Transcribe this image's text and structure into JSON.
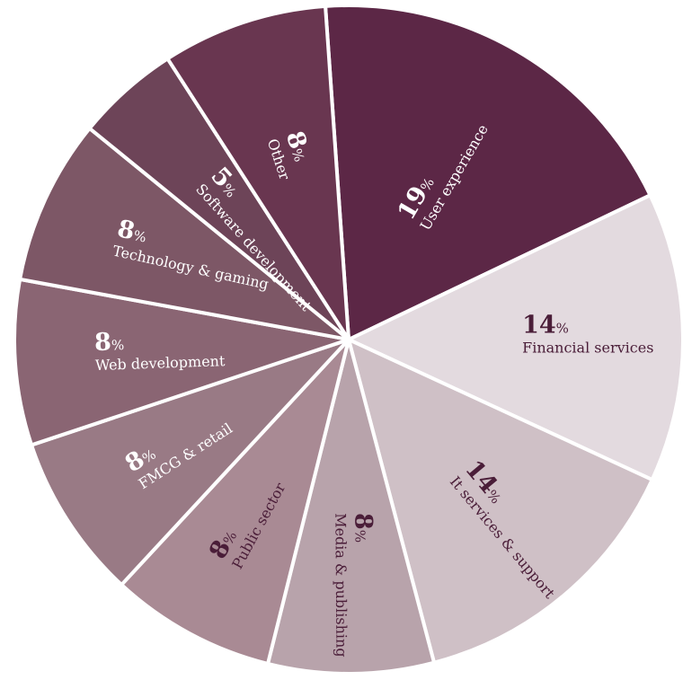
{
  "chart_data": {
    "type": "pie",
    "start_angle_deg": -4,
    "direction": "clockwise",
    "slices": [
      {
        "label": "User experience",
        "value": 19,
        "display": "19",
        "unit": "%",
        "color": "#5c2746",
        "text_color": "#ffffff"
      },
      {
        "label": "Financial services",
        "value": 14,
        "display": "14",
        "unit": "%",
        "color": "#e3dadf",
        "text_color": "#4a1d38"
      },
      {
        "label": "It services & support",
        "value": 14,
        "display": "14",
        "unit": "%",
        "color": "#cfc0c6",
        "text_color": "#4a1d38"
      },
      {
        "label": "Media & publishing",
        "value": 8,
        "display": "8",
        "unit": "%",
        "color": "#b8a3ab",
        "text_color": "#4a1d38"
      },
      {
        "label": "Public sector",
        "value": 8,
        "display": "8",
        "unit": "%",
        "color": "#a98a94",
        "text_color": "#4a1d38"
      },
      {
        "label": "FMCG & retail",
        "value": 8,
        "display": "8",
        "unit": "%",
        "color": "#997a85",
        "text_color": "#ffffff"
      },
      {
        "label": "Web development",
        "value": 8,
        "display": "8",
        "unit": "%",
        "color": "#8a6573",
        "text_color": "#ffffff"
      },
      {
        "label": "Technology & gaming",
        "value": 8,
        "display": "8",
        "unit": "%",
        "color": "#7d5766",
        "text_color": "#ffffff"
      },
      {
        "label": "Software development",
        "value": 5,
        "display": "5",
        "unit": "%",
        "color": "#6d4458",
        "text_color": "#ffffff"
      },
      {
        "label": "Other",
        "value": 8,
        "display": "8",
        "unit": "%",
        "color": "#693650",
        "text_color": "#ffffff"
      }
    ]
  }
}
